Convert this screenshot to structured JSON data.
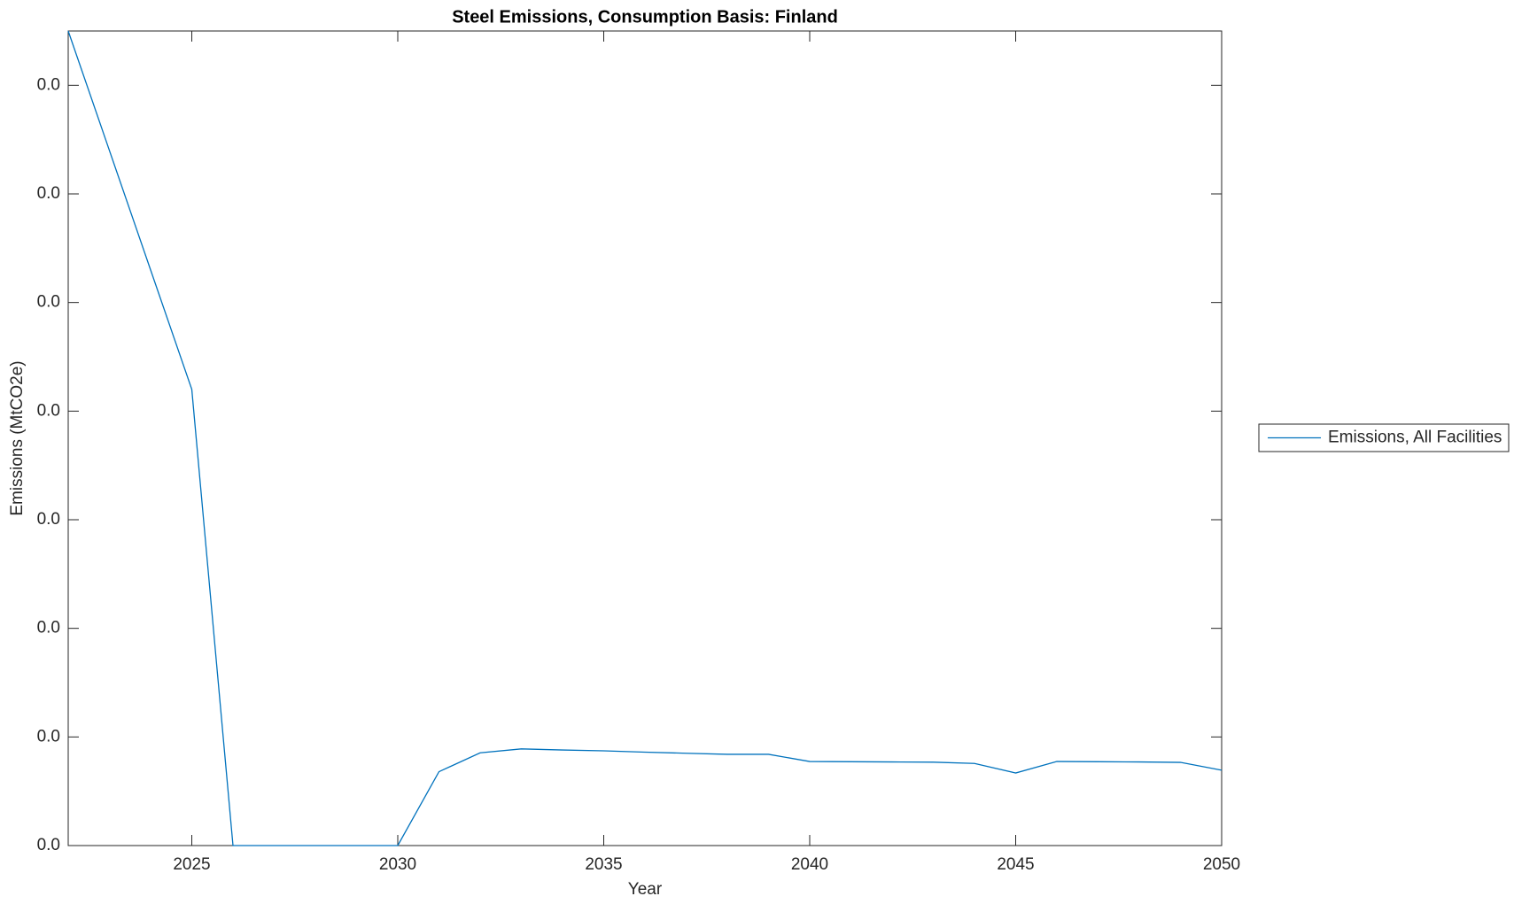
{
  "chart_data": {
    "type": "line",
    "title": "Steel Emissions, Consumption Basis: Finland",
    "x_label": "Year",
    "y_label": "Emissions (MtCO2e)",
    "x": [
      2022,
      2023,
      2024,
      2025,
      2026,
      2027,
      2028,
      2029,
      2030,
      2031,
      2032,
      2033,
      2034,
      2035,
      2036,
      2037,
      2038,
      2039,
      2040,
      2041,
      2042,
      2043,
      2044,
      2045,
      2046,
      2047,
      2048,
      2049,
      2050
    ],
    "series": [
      {
        "name": "Emissions, All Facilities",
        "color": "#0072bd",
        "values": [
          0.0375,
          0.032,
          0.0265,
          0.021,
          0,
          0,
          0,
          0,
          0,
          0.0034,
          0.00427,
          0.00445,
          0.0044,
          0.00436,
          0.0043,
          0.00425,
          0.0042,
          0.0042,
          0.00387,
          0.00386,
          0.00385,
          0.00384,
          0.00378,
          0.00334,
          0.00387,
          0.00386,
          0.00385,
          0.00383,
          0.00347
        ]
      }
    ],
    "xlim": [
      2022,
      2050
    ],
    "xticks": [
      2025,
      2030,
      2035,
      2040,
      2045,
      2050
    ],
    "ylim": [
      0,
      0.0375
    ],
    "yticks": [
      {
        "value": 0,
        "label": "0.0"
      },
      {
        "value": 0.005,
        "label": "0.0"
      },
      {
        "value": 0.01,
        "label": "0.0"
      },
      {
        "value": 0.015,
        "label": "0.0"
      },
      {
        "value": 0.02,
        "label": "0.0"
      },
      {
        "value": 0.025,
        "label": "0.0"
      },
      {
        "value": 0.03,
        "label": "0.0"
      },
      {
        "value": 0.035,
        "label": "0.0"
      }
    ],
    "grid": false,
    "legend": "outside-right"
  }
}
